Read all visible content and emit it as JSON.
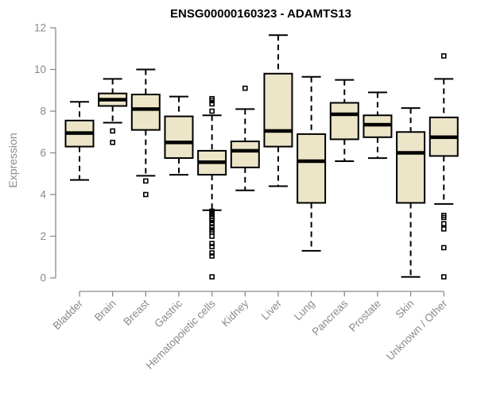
{
  "chart_data": {
    "type": "boxplot",
    "title": "ENSG00000160323 - ADAMTS13",
    "ylabel": "Expression",
    "xlabel": "",
    "ylim": [
      0,
      12
    ],
    "yticks": [
      0,
      2,
      4,
      6,
      8,
      10,
      12
    ],
    "grid": false,
    "legend": "none",
    "x_tick_rotation_deg": -45,
    "categories": [
      "Bladder",
      "Brain",
      "Breast",
      "Gastric",
      "Hematopoietic cells",
      "Kidney",
      "Liver",
      "Lung",
      "Pancreas",
      "Prostate",
      "Skin",
      "Unknown / Other"
    ],
    "series": [
      {
        "name": "Bladder",
        "whislo": 4.7,
        "q1": 6.3,
        "med": 6.95,
        "q3": 7.55,
        "whishi": 8.45,
        "outliers": []
      },
      {
        "name": "Brain",
        "whislo": 7.45,
        "q1": 8.25,
        "med": 8.55,
        "q3": 8.85,
        "whishi": 9.55,
        "outliers": [
          7.05,
          6.5
        ]
      },
      {
        "name": "Breast",
        "whislo": 4.9,
        "q1": 7.1,
        "med": 8.1,
        "q3": 8.8,
        "whishi": 10.0,
        "outliers": [
          4.65,
          4.0
        ]
      },
      {
        "name": "Gastric",
        "whislo": 4.95,
        "q1": 5.75,
        "med": 6.5,
        "q3": 7.75,
        "whishi": 8.7,
        "outliers": []
      },
      {
        "name": "Hematopoietic cells",
        "whislo": 3.25,
        "q1": 4.95,
        "med": 5.55,
        "q3": 6.1,
        "whishi": 7.8,
        "outliers": [
          8.6,
          8.5,
          8.35,
          8.0,
          3.2,
          3.1,
          3.05,
          2.95,
          2.85,
          2.75,
          2.6,
          2.45,
          2.3,
          2.2,
          2.0,
          1.65,
          1.5,
          1.2,
          1.05,
          0.05
        ]
      },
      {
        "name": "Kidney",
        "whislo": 4.2,
        "q1": 5.3,
        "med": 6.1,
        "q3": 6.55,
        "whishi": 8.1,
        "outliers": [
          9.1
        ]
      },
      {
        "name": "Liver",
        "whislo": 4.4,
        "q1": 6.3,
        "med": 7.05,
        "q3": 9.8,
        "whishi": 11.65,
        "outliers": []
      },
      {
        "name": "Lung",
        "whislo": 1.3,
        "q1": 3.6,
        "med": 5.6,
        "q3": 6.9,
        "whishi": 9.65,
        "outliers": []
      },
      {
        "name": "Pancreas",
        "whislo": 5.6,
        "q1": 6.65,
        "med": 7.85,
        "q3": 8.4,
        "whishi": 9.5,
        "outliers": []
      },
      {
        "name": "Prostate",
        "whislo": 5.75,
        "q1": 6.75,
        "med": 7.35,
        "q3": 7.8,
        "whishi": 8.9,
        "outliers": []
      },
      {
        "name": "Skin",
        "whislo": 0.05,
        "q1": 3.6,
        "med": 6.0,
        "q3": 7.0,
        "whishi": 8.15,
        "outliers": []
      },
      {
        "name": "Unknown / Other",
        "whislo": 3.55,
        "q1": 5.85,
        "med": 6.75,
        "q3": 7.7,
        "whishi": 9.55,
        "outliers": [
          10.65,
          3.0,
          2.9,
          2.6,
          2.35,
          1.45,
          0.05
        ]
      }
    ],
    "colors": {
      "box_fill": "#ece5c8",
      "box_border": "#000000",
      "median": "#000000",
      "whisker": "#000000",
      "outlier": "#000000",
      "axis": "#8a8a8a",
      "tick_label": "#8a8a8a",
      "title": "#000000",
      "background": "#ffffff"
    }
  }
}
